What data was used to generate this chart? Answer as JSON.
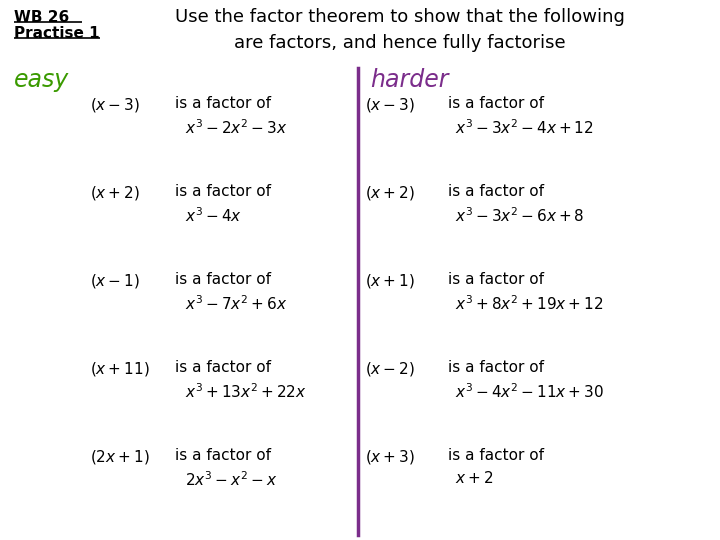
{
  "title_wb1": "WB 26",
  "title_wb2": "Practise 1",
  "title_main": "Use the factor theorem to show that the following\nare factors, and hence fully factorise",
  "easy_label": "easy",
  "harder_label": "harder",
  "easy_color": "#3a9a00",
  "harder_color": "#7b2d8b",
  "divider_color": "#7b2d8b",
  "bg_color": "#ffffff",
  "text_color": "#000000",
  "easy_items": [
    [
      "$(x-3)$",
      "$x^3-2x^2-3x$"
    ],
    [
      "$(x+2)$",
      "$x^3-4x$"
    ],
    [
      "$(x-1)$",
      "$x^3-7x^2+6x$"
    ],
    [
      "$(x+11)$",
      "$x^3+13x^2+22x$"
    ],
    [
      "$(2x+1)$",
      "$2x^3-x^2-x$"
    ]
  ],
  "harder_items": [
    [
      "$(x-3)$",
      "$x^3-3x^2-4x+12$"
    ],
    [
      "$(x+2)$",
      "$x^3-3x^2-6x+8$"
    ],
    [
      "$(x+1)$",
      "$x^3+8x^2+19x+12$"
    ],
    [
      "$(x-2)$",
      "$x^3-4x^2-11x+30$"
    ],
    [
      "$(x+3)$",
      "$x+2$"
    ]
  ]
}
